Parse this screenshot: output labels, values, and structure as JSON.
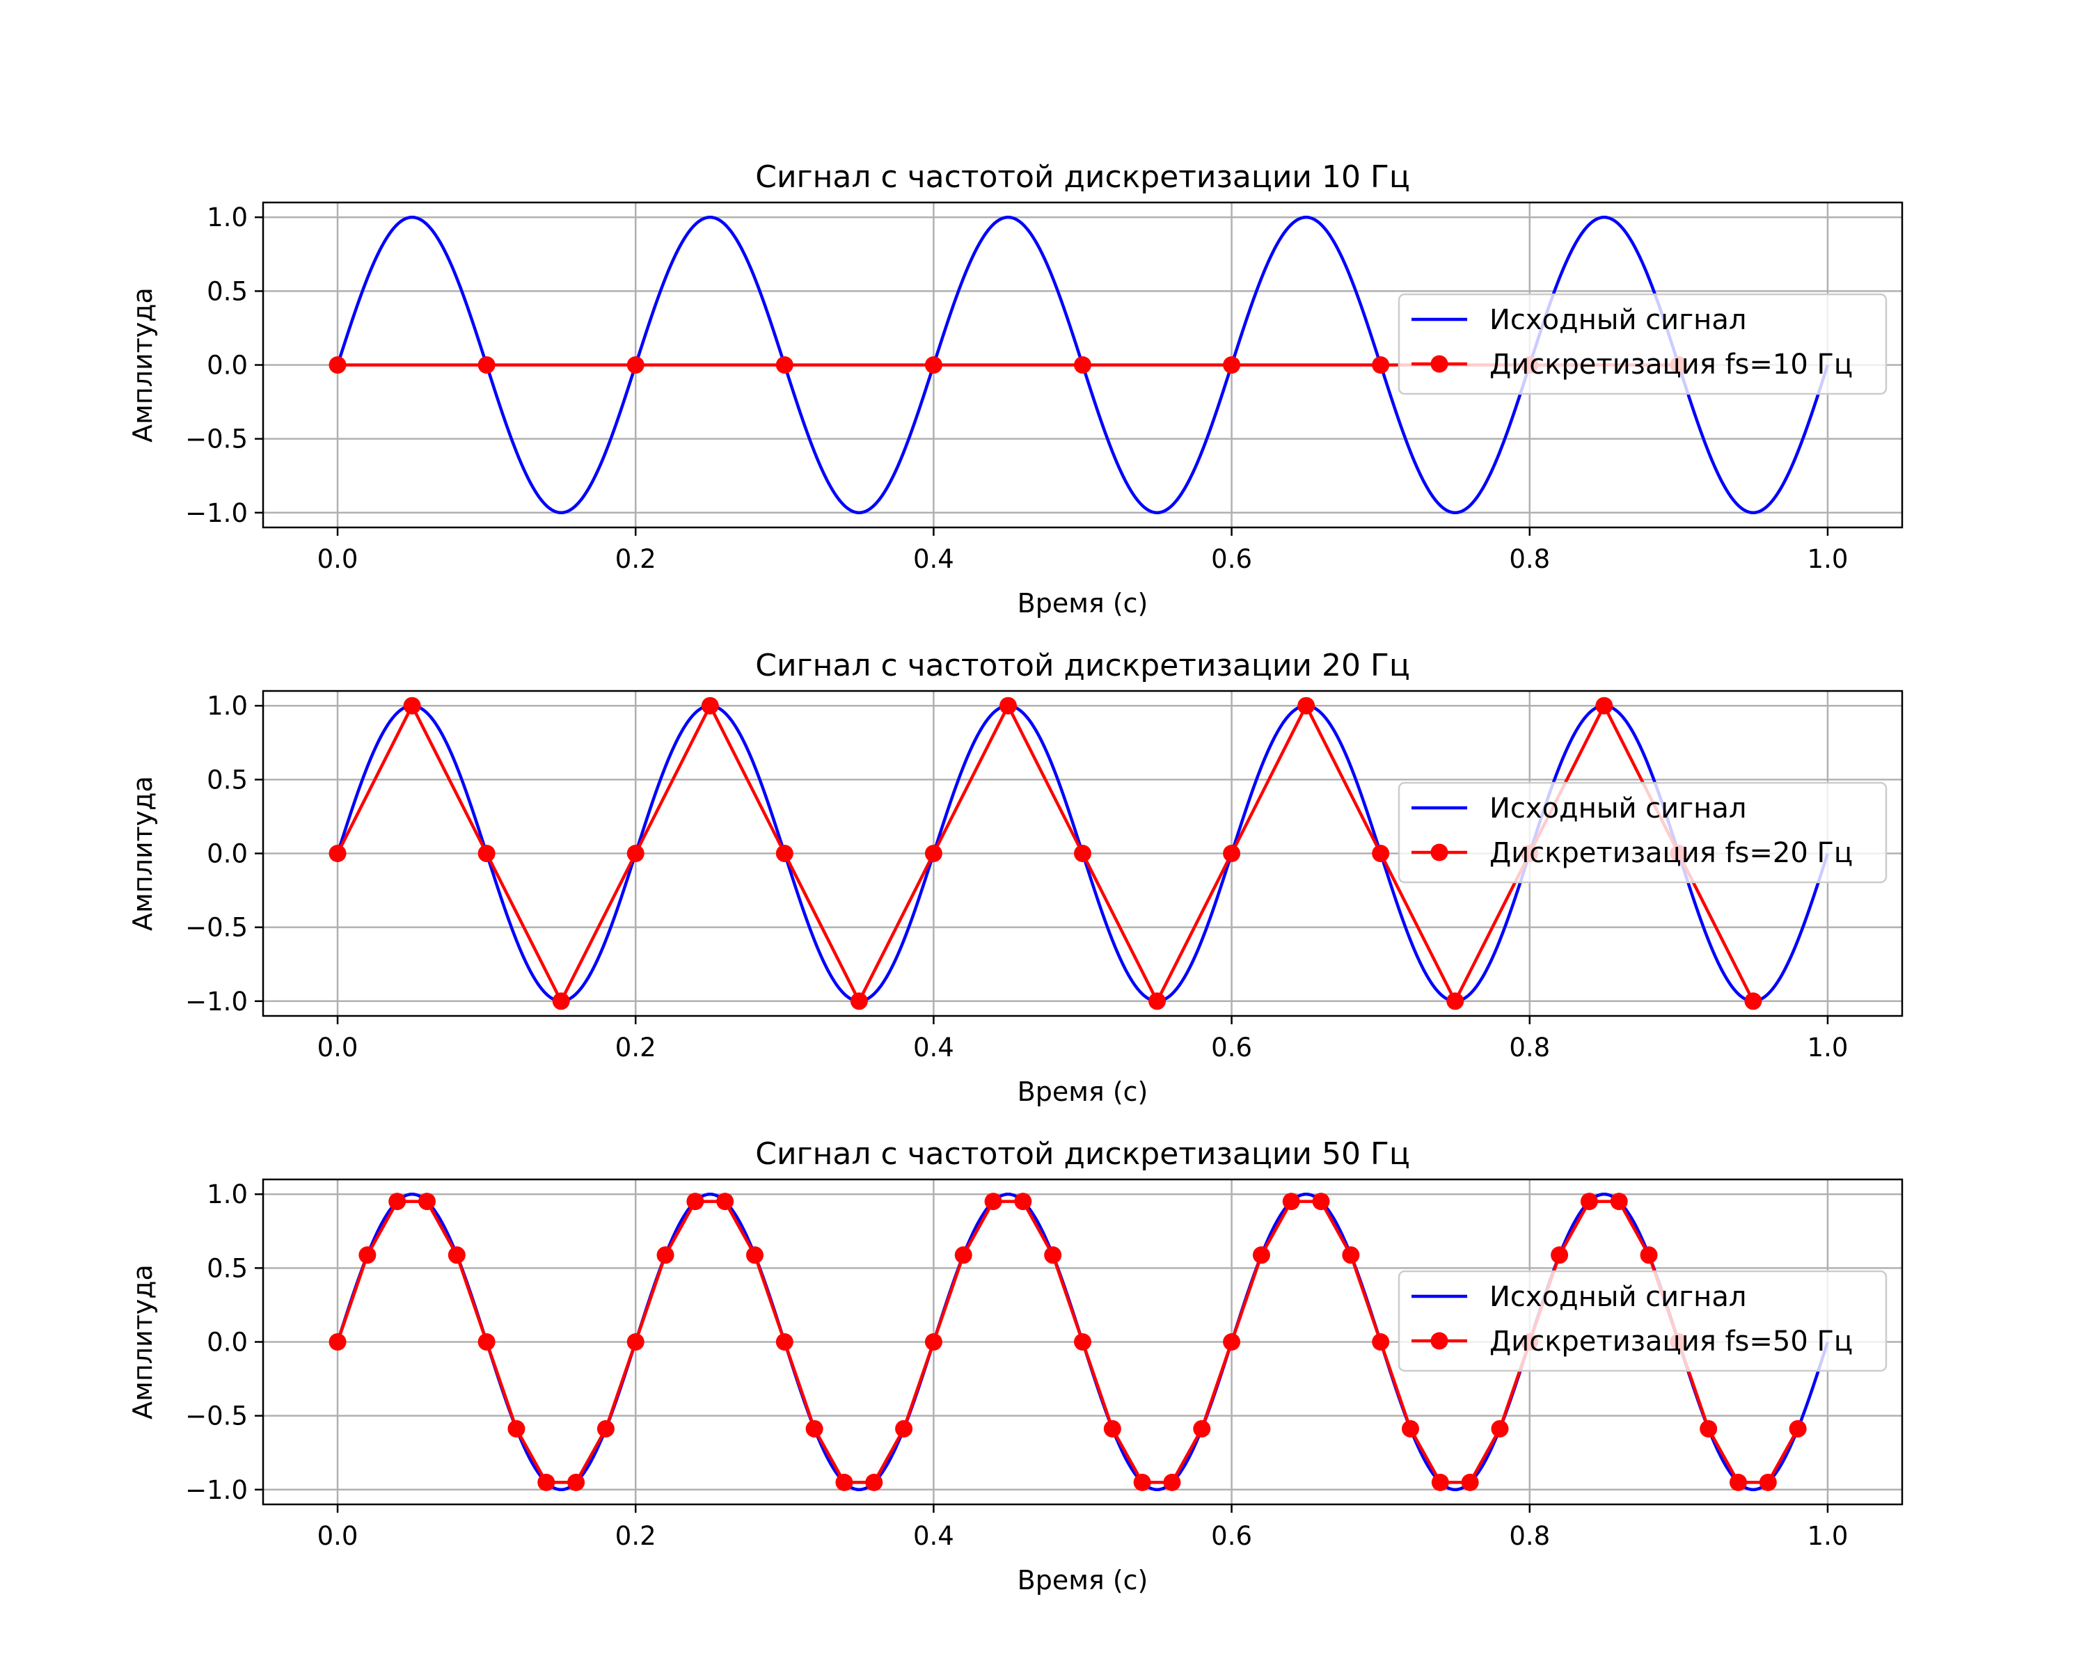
{
  "chart_data": [
    {
      "type": "line",
      "title": "Сигнал с частотой дискретизации 10 Гц",
      "xlabel": "Время (с)",
      "ylabel": "Амплитуда",
      "xlim": [
        -0.05,
        1.05
      ],
      "ylim": [
        -1.1,
        1.1
      ],
      "xticks": [
        0.0,
        0.2,
        0.4,
        0.6,
        0.8,
        1.0
      ],
      "xtick_labels": [
        "0.0",
        "0.2",
        "0.4",
        "0.6",
        "0.8",
        "1.0"
      ],
      "yticks": [
        -1.0,
        -0.5,
        0.0,
        0.5,
        1.0
      ],
      "ytick_labels": [
        "−1.0",
        "−0.5",
        "0.0",
        "0.5",
        "1.0"
      ],
      "grid": true,
      "legend_position": "center-right",
      "series": [
        {
          "name": "Исходный сигнал",
          "color": "#0000ff",
          "style": "line",
          "function": "sin(2π·5·t)",
          "t_range": [
            0,
            1
          ]
        },
        {
          "name": "Дискретизация fs=10 Гц",
          "color": "#ff0000",
          "style": "line-markers",
          "x": [
            0.0,
            0.1,
            0.2,
            0.3,
            0.4,
            0.5,
            0.6,
            0.7,
            0.8,
            0.9
          ],
          "y": [
            0,
            0,
            0,
            0,
            0,
            0,
            0,
            0,
            0,
            0
          ]
        }
      ]
    },
    {
      "type": "line",
      "title": "Сигнал с частотой дискретизации 20 Гц",
      "xlabel": "Время (с)",
      "ylabel": "Амплитуда",
      "xlim": [
        -0.05,
        1.05
      ],
      "ylim": [
        -1.1,
        1.1
      ],
      "xticks": [
        0.0,
        0.2,
        0.4,
        0.6,
        0.8,
        1.0
      ],
      "xtick_labels": [
        "0.0",
        "0.2",
        "0.4",
        "0.6",
        "0.8",
        "1.0"
      ],
      "yticks": [
        -1.0,
        -0.5,
        0.0,
        0.5,
        1.0
      ],
      "ytick_labels": [
        "−1.0",
        "−0.5",
        "0.0",
        "0.5",
        "1.0"
      ],
      "grid": true,
      "legend_position": "center-right",
      "series": [
        {
          "name": "Исходный сигнал",
          "color": "#0000ff",
          "style": "line",
          "function": "sin(2π·5·t)",
          "t_range": [
            0,
            1
          ]
        },
        {
          "name": "Дискретизация fs=20 Гц",
          "color": "#ff0000",
          "style": "line-markers",
          "x": [
            0.0,
            0.05,
            0.1,
            0.15,
            0.2,
            0.25,
            0.3,
            0.35,
            0.4,
            0.45,
            0.5,
            0.55,
            0.6,
            0.65,
            0.7,
            0.75,
            0.8,
            0.85,
            0.9,
            0.95
          ],
          "y": [
            0,
            1,
            0,
            -1,
            0,
            1,
            0,
            -1,
            0,
            1,
            0,
            -1,
            0,
            1,
            0,
            -1,
            0,
            1,
            0,
            -1
          ]
        }
      ]
    },
    {
      "type": "line",
      "title": "Сигнал с частотой дискретизации 50 Гц",
      "xlabel": "Время (с)",
      "ylabel": "Амплитуда",
      "xlim": [
        -0.05,
        1.05
      ],
      "ylim": [
        -1.1,
        1.1
      ],
      "xticks": [
        0.0,
        0.2,
        0.4,
        0.6,
        0.8,
        1.0
      ],
      "xtick_labels": [
        "0.0",
        "0.2",
        "0.4",
        "0.6",
        "0.8",
        "1.0"
      ],
      "yticks": [
        -1.0,
        -0.5,
        0.0,
        0.5,
        1.0
      ],
      "ytick_labels": [
        "−1.0",
        "−0.5",
        "0.0",
        "0.5",
        "1.0"
      ],
      "grid": true,
      "legend_position": "center-right",
      "series": [
        {
          "name": "Исходный сигнал",
          "color": "#0000ff",
          "style": "line",
          "function": "sin(2π·5·t)",
          "t_range": [
            0,
            1
          ]
        },
        {
          "name": "Дискретизация fs=50 Гц",
          "color": "#ff0000",
          "style": "line-markers",
          "x": [
            0.0,
            0.02,
            0.04,
            0.06,
            0.08,
            0.1,
            0.12,
            0.14,
            0.16,
            0.18,
            0.2,
            0.22,
            0.24,
            0.26,
            0.28,
            0.3,
            0.32,
            0.34,
            0.36,
            0.38,
            0.4,
            0.42,
            0.44,
            0.46,
            0.48,
            0.5,
            0.52,
            0.54,
            0.56,
            0.58,
            0.6,
            0.62,
            0.64,
            0.66,
            0.68,
            0.7,
            0.72,
            0.74,
            0.76,
            0.78,
            0.8,
            0.82,
            0.84,
            0.86,
            0.88,
            0.9,
            0.92,
            0.94,
            0.96,
            0.98
          ],
          "y": [
            0,
            0.588,
            0.951,
            0.951,
            0.588,
            0,
            -0.588,
            -0.951,
            -0.951,
            -0.588,
            0,
            0.588,
            0.951,
            0.951,
            0.588,
            0,
            -0.588,
            -0.951,
            -0.951,
            -0.588,
            0,
            0.588,
            0.951,
            0.951,
            0.588,
            0,
            -0.588,
            -0.951,
            -0.951,
            -0.588,
            0,
            0.588,
            0.951,
            0.951,
            0.588,
            0,
            -0.588,
            -0.951,
            -0.951,
            -0.588,
            0,
            0.588,
            0.951,
            0.951,
            0.588,
            0,
            -0.588,
            -0.951,
            -0.951,
            -0.588
          ]
        }
      ]
    }
  ]
}
